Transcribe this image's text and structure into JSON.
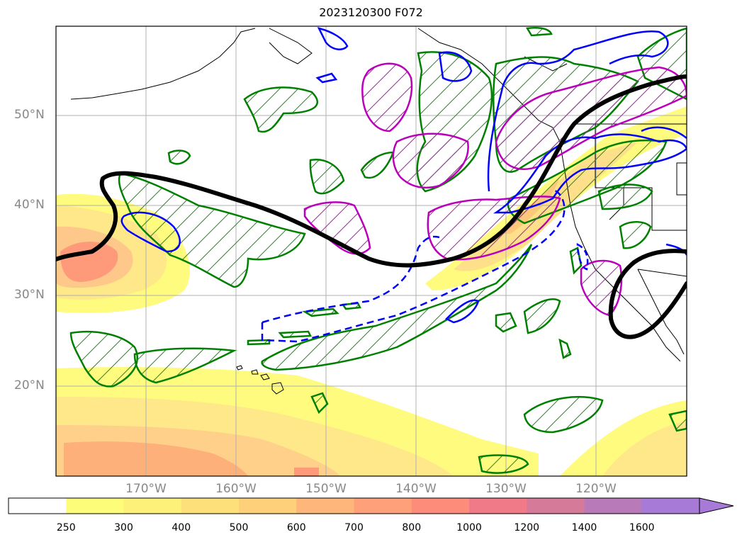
{
  "title": "2023120300 F072",
  "lat_labels": [
    "50°N",
    "40°N",
    "30°N",
    "20°N"
  ],
  "lon_labels": [
    "170°W",
    "160°W",
    "150°W",
    "140°W",
    "130°W",
    "120°W"
  ],
  "colorbar": {
    "labels": [
      "250",
      "300",
      "400",
      "500",
      "600",
      "700",
      "800",
      "1000",
      "1200",
      "1400",
      "1600"
    ],
    "colors": [
      "#ffffff",
      "#fefd7a",
      "#fef17a",
      "#fee07a",
      "#fed07a",
      "#feb67a",
      "#fea07a",
      "#fe8c7a",
      "#f07a88",
      "#d67a9a",
      "#b87ab8",
      "#a67ad6"
    ],
    "extend": "max"
  },
  "legend_colors": {
    "jet_contour": "#000000",
    "green_hatch": "#008000",
    "blue_contour": "#0000ff",
    "magenta_hatch": "#bb00bb"
  }
}
